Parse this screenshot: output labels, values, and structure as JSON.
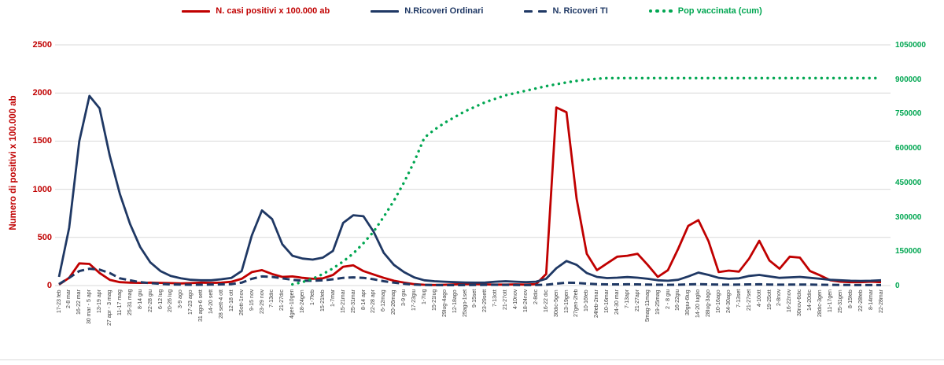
{
  "chart_data": {
    "type": "line",
    "title": "",
    "grid": true,
    "legend_position": "top",
    "left_axis": {
      "title": "Numero di positivi x 100.000 ab",
      "min": 0,
      "max": 2500,
      "step": 500,
      "tick_labels": [
        "0",
        "500",
        "1000",
        "1500",
        "2000",
        "2500"
      ],
      "color": "#c00000"
    },
    "right_axis": {
      "min": 0,
      "max": 1050000,
      "step": 150000,
      "tick_labels": [
        "0",
        "150000",
        "300000",
        "450000",
        "600000",
        "750000",
        "900000",
        "1050000"
      ],
      "color": "#00a651"
    },
    "categories": [
      "17-23 feb",
      "2-8 mar",
      "16-22 mar",
      "30 mar - 5 apr",
      "13-19 apr",
      "27 apr - 3 mag",
      "11-17 mag",
      "25-31 mag",
      "8-14 giu",
      "22-28 giu",
      "6-12 lug",
      "20-26 lug",
      "3-9 ago",
      "17-23 ago",
      "31 ago-6 sett",
      "14-20 sett",
      "28 sett-4 ott",
      "12-18 ott",
      "26ott-1nov",
      "9-15 nov",
      "23-29 nov",
      "7-13dic",
      "21-27dic",
      "4gen-10gen",
      "18-24gen",
      "1-7feb",
      "15-21feb",
      "1-7mar",
      "15-21mar",
      "25-31mar",
      "8-14 apr",
      "22-28 apr",
      "6-12mag",
      "20-26mag",
      "3-9 giu",
      "17-23giu",
      "1-7lug",
      "15-21lug",
      "29lug-4ago",
      "12-18ago",
      "25ago-1set",
      "9-15set",
      "23-29sett",
      "7-13ott",
      "21-27ott",
      "4-10nov",
      "18-24nov",
      "2-8dic",
      "16-22 dic",
      "30dic-5gen",
      "13-19gen",
      "27gen-2feb",
      "10-16feb",
      "24feb-2mar",
      "10-16mar",
      "24-30 mar",
      "7-13apr",
      "21-27apr",
      "5mag-11mag",
      "19-25mag",
      "2 - 8 giu",
      "16-22giu",
      "30giu-6lug",
      "14-20 luglio",
      "28lug-3ago",
      "10-16ago",
      "24-30ago",
      "7-13set",
      "21-27set",
      "4-10ott",
      "19-25ott",
      "2-8nov",
      "16-22nov",
      "30nov-6dic",
      "14-20dic",
      "28dic-3gen",
      "11-17gen",
      "25-31gen",
      "8-15feb",
      "22-28feb",
      "8-14mar",
      "22-28mar"
    ],
    "series": [
      {
        "name": "N. casi positivi x 100.000 ab",
        "color": "#c00000",
        "style": "solid",
        "axis": "left",
        "values": [
          10,
          80,
          230,
          225,
          130,
          60,
          35,
          30,
          28,
          30,
          28,
          25,
          22,
          25,
          30,
          28,
          30,
          40,
          70,
          140,
          160,
          120,
          90,
          95,
          80,
          70,
          75,
          110,
          195,
          210,
          150,
          115,
          80,
          50,
          30,
          15,
          8,
          6,
          8,
          12,
          15,
          15,
          12,
          10,
          10,
          12,
          10,
          15,
          120,
          1850,
          1800,
          900,
          330,
          160,
          230,
          300,
          310,
          330,
          215,
          90,
          160,
          380,
          620,
          680,
          460,
          140,
          155,
          145,
          280,
          465,
          260,
          175,
          300,
          290,
          150,
          105,
          55,
          40,
          35,
          35,
          40,
          35
        ]
      },
      {
        "name": "N.Ricoveri Ordinari",
        "color": "#1f3864",
        "style": "solid",
        "axis": "left",
        "values": [
          90,
          600,
          1500,
          1970,
          1840,
          1350,
          950,
          640,
          400,
          240,
          150,
          100,
          75,
          60,
          55,
          55,
          65,
          80,
          150,
          520,
          780,
          690,
          430,
          310,
          280,
          270,
          290,
          360,
          650,
          730,
          720,
          560,
          340,
          215,
          140,
          85,
          55,
          45,
          40,
          35,
          32,
          30,
          32,
          40,
          45,
          40,
          35,
          40,
          70,
          180,
          255,
          215,
          130,
          90,
          78,
          82,
          88,
          82,
          70,
          55,
          50,
          60,
          95,
          135,
          110,
          80,
          70,
          75,
          100,
          110,
          95,
          80,
          85,
          90,
          80,
          70,
          60,
          55,
          50,
          48,
          50,
          55
        ]
      },
      {
        "name": "N. Ricoveri TI",
        "color": "#1f3864",
        "style": "dashed",
        "axis": "left",
        "values": [
          15,
          80,
          150,
          175,
          165,
          130,
          75,
          55,
          35,
          25,
          18,
          12,
          10,
          8,
          8,
          10,
          12,
          15,
          30,
          70,
          95,
          90,
          75,
          60,
          50,
          50,
          55,
          65,
          80,
          85,
          80,
          65,
          45,
          30,
          18,
          10,
          6,
          5,
          4,
          4,
          5,
          6,
          7,
          8,
          7,
          6,
          5,
          6,
          8,
          20,
          30,
          28,
          20,
          15,
          12,
          12,
          13,
          12,
          10,
          8,
          7,
          8,
          12,
          15,
          12,
          10,
          9,
          10,
          12,
          13,
          11,
          9,
          10,
          11,
          10,
          8,
          7,
          6,
          6,
          5,
          5,
          5
        ]
      },
      {
        "name": "Pop vaccinata (cum)",
        "color": "#00a651",
        "style": "dotted",
        "axis": "right",
        "values": [
          null,
          null,
          null,
          null,
          null,
          null,
          null,
          null,
          null,
          null,
          null,
          null,
          null,
          null,
          null,
          null,
          null,
          null,
          null,
          null,
          null,
          null,
          null,
          5000,
          15000,
          30000,
          50000,
          75000,
          105000,
          140000,
          185000,
          235000,
          300000,
          370000,
          450000,
          540000,
          645000,
          680000,
          710000,
          735000,
          760000,
          780000,
          800000,
          815000,
          830000,
          840000,
          850000,
          860000,
          870000,
          878000,
          886000,
          893000,
          898000,
          902000,
          905000,
          905000,
          905000,
          905000,
          905000,
          905000,
          905000,
          905000,
          905000,
          905000,
          905000,
          905000,
          905000,
          905000,
          905000,
          905000,
          905000,
          905000,
          905000,
          905000,
          905000,
          905000,
          905000,
          905000,
          905000,
          905000,
          905000,
          905000
        ]
      }
    ],
    "gridline_color": "#d9d9d9"
  }
}
